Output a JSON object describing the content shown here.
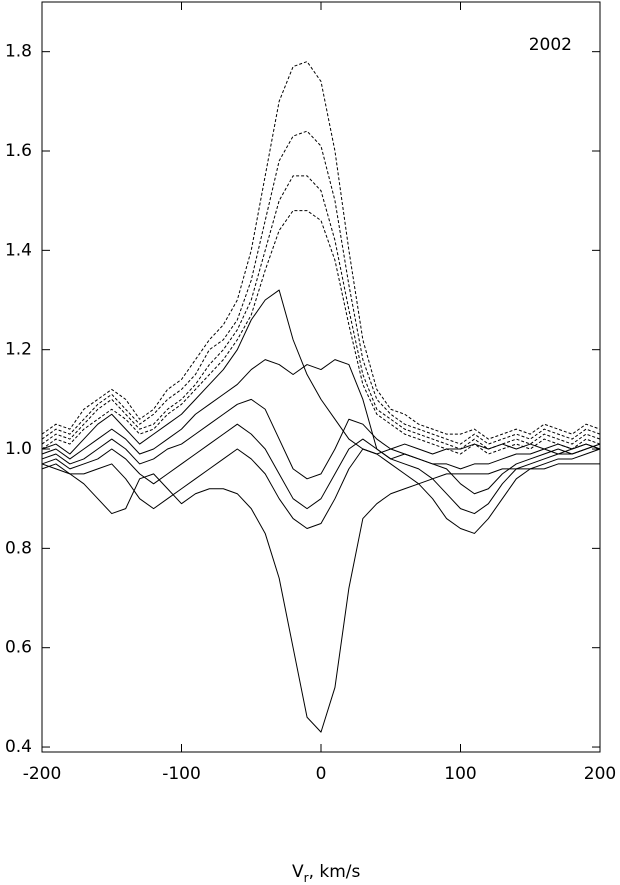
{
  "chart_data": {
    "type": "line",
    "annotation": "2002",
    "x_label": [
      "V",
      "r",
      ", km/s"
    ],
    "xlim": [
      -200,
      200
    ],
    "ylim": [
      0.39,
      1.9
    ],
    "xticks": [
      -200,
      -100,
      0,
      100,
      200
    ],
    "yticks": [
      0.4,
      0.6,
      0.8,
      {
        "value": 1,
        "label": "1.0"
      },
      1.2,
      1.4,
      1.6,
      1.8
    ],
    "x": [
      -200,
      -190,
      -180,
      -170,
      -160,
      -150,
      -140,
      -130,
      -120,
      -110,
      -100,
      -90,
      -80,
      -70,
      -60,
      -50,
      -40,
      -30,
      -20,
      -10,
      0,
      10,
      20,
      30,
      40,
      50,
      60,
      70,
      80,
      90,
      100,
      110,
      120,
      130,
      140,
      150,
      160,
      170,
      180,
      190,
      200
    ],
    "series": [
      {
        "color": "#000",
        "dashed": true,
        "values": [
          1.03,
          1.05,
          1.04,
          1.08,
          1.1,
          1.12,
          1.1,
          1.06,
          1.08,
          1.12,
          1.14,
          1.18,
          1.22,
          1.25,
          1.3,
          1.4,
          1.55,
          1.7,
          1.77,
          1.78,
          1.74,
          1.6,
          1.4,
          1.22,
          1.12,
          1.08,
          1.07,
          1.05,
          1.04,
          1.03,
          1.03,
          1.04,
          1.02,
          1.03,
          1.04,
          1.03,
          1.05,
          1.04,
          1.03,
          1.05,
          1.04
        ]
      },
      {
        "color": "#000",
        "dashed": true,
        "values": [
          1.02,
          1.04,
          1.03,
          1.06,
          1.09,
          1.11,
          1.08,
          1.05,
          1.07,
          1.1,
          1.12,
          1.15,
          1.2,
          1.22,
          1.26,
          1.34,
          1.46,
          1.58,
          1.63,
          1.64,
          1.61,
          1.5,
          1.33,
          1.18,
          1.1,
          1.07,
          1.05,
          1.04,
          1.03,
          1.02,
          1.01,
          1.03,
          1.01,
          1.02,
          1.03,
          1.02,
          1.04,
          1.03,
          1.02,
          1.04,
          1.03
        ]
      },
      {
        "color": "#000",
        "dashed": true,
        "values": [
          1.01,
          1.03,
          1.02,
          1.05,
          1.08,
          1.1,
          1.07,
          1.04,
          1.05,
          1.08,
          1.1,
          1.13,
          1.17,
          1.2,
          1.24,
          1.3,
          1.4,
          1.5,
          1.55,
          1.55,
          1.52,
          1.42,
          1.28,
          1.15,
          1.08,
          1.06,
          1.04,
          1.03,
          1.02,
          1.01,
          1.0,
          1.02,
          1.0,
          1.01,
          1.02,
          1.01,
          1.03,
          1.02,
          1.01,
          1.03,
          1.02
        ]
      },
      {
        "color": "#000",
        "dashed": true,
        "values": [
          1.0,
          1.02,
          1.01,
          1.04,
          1.06,
          1.08,
          1.06,
          1.03,
          1.04,
          1.07,
          1.09,
          1.12,
          1.15,
          1.18,
          1.22,
          1.27,
          1.36,
          1.44,
          1.48,
          1.48,
          1.46,
          1.38,
          1.25,
          1.13,
          1.07,
          1.05,
          1.03,
          1.02,
          1.01,
          1.0,
          0.99,
          1.01,
          0.99,
          1.0,
          1.01,
          1.0,
          1.02,
          1.01,
          1.0,
          1.02,
          1.01
        ]
      },
      {
        "color": "#000",
        "dashed": false,
        "values": [
          1.0,
          1.01,
          0.99,
          1.02,
          1.05,
          1.07,
          1.04,
          1.01,
          1.03,
          1.05,
          1.07,
          1.1,
          1.13,
          1.16,
          1.2,
          1.26,
          1.3,
          1.32,
          1.22,
          1.15,
          1.1,
          1.06,
          1.02,
          1.0,
          0.99,
          1.0,
          1.01,
          1.0,
          0.99,
          1.0,
          1.0,
          1.01,
          1.0,
          1.01,
          1.0,
          1.01,
          1.0,
          1.01,
          1.0,
          1.01,
          1.0
        ]
      },
      {
        "color": "#000",
        "dashed": false,
        "values": [
          0.99,
          1.0,
          0.98,
          1.0,
          1.02,
          1.04,
          1.02,
          0.99,
          1.0,
          1.02,
          1.04,
          1.07,
          1.09,
          1.11,
          1.13,
          1.16,
          1.18,
          1.17,
          1.15,
          1.17,
          1.16,
          1.18,
          1.17,
          1.1,
          1.0,
          0.98,
          0.99,
          0.98,
          0.97,
          0.97,
          0.96,
          0.97,
          0.97,
          0.98,
          0.99,
          0.99,
          1.0,
          0.99,
          1.0,
          1.01,
          1.0
        ]
      },
      {
        "color": "#000",
        "dashed": false,
        "values": [
          0.98,
          0.99,
          0.97,
          0.98,
          1.0,
          1.02,
          1.0,
          0.97,
          0.98,
          1.0,
          1.01,
          1.03,
          1.05,
          1.07,
          1.09,
          1.1,
          1.08,
          1.02,
          0.96,
          0.94,
          0.95,
          1.0,
          1.06,
          1.05,
          1.02,
          1.0,
          0.99,
          0.98,
          0.97,
          0.96,
          0.93,
          0.91,
          0.92,
          0.95,
          0.97,
          0.98,
          0.99,
          1.0,
          0.99,
          1.0,
          1.01
        ]
      },
      {
        "color": "#000",
        "dashed": false,
        "values": [
          0.96,
          0.97,
          0.95,
          0.95,
          0.96,
          0.97,
          0.94,
          0.9,
          0.88,
          0.9,
          0.92,
          0.94,
          0.96,
          0.98,
          1.0,
          0.98,
          0.95,
          0.9,
          0.86,
          0.84,
          0.85,
          0.9,
          0.96,
          1.0,
          0.99,
          0.97,
          0.95,
          0.93,
          0.9,
          0.86,
          0.84,
          0.83,
          0.86,
          0.9,
          0.94,
          0.96,
          0.97,
          0.98,
          0.98,
          0.99,
          1.0
        ]
      },
      {
        "color": "#000",
        "dashed": false,
        "values": [
          0.97,
          0.98,
          0.96,
          0.97,
          0.98,
          1.0,
          0.98,
          0.95,
          0.93,
          0.95,
          0.97,
          0.99,
          1.01,
          1.03,
          1.05,
          1.03,
          1.0,
          0.95,
          0.9,
          0.88,
          0.9,
          0.95,
          1.0,
          1.02,
          1.0,
          0.98,
          0.97,
          0.96,
          0.94,
          0.91,
          0.88,
          0.87,
          0.89,
          0.93,
          0.96,
          0.97,
          0.98,
          0.99,
          0.99,
          1.0,
          1.01
        ]
      },
      {
        "color": "#000",
        "dashed": false,
        "values": [
          0.97,
          0.96,
          0.95,
          0.93,
          0.9,
          0.87,
          0.88,
          0.94,
          0.95,
          0.92,
          0.89,
          0.91,
          0.92,
          0.92,
          0.91,
          0.88,
          0.83,
          0.74,
          0.6,
          0.46,
          0.43,
          0.52,
          0.72,
          0.86,
          0.89,
          0.91,
          0.92,
          0.93,
          0.94,
          0.95,
          0.95,
          0.95,
          0.95,
          0.96,
          0.96,
          0.96,
          0.96,
          0.97,
          0.97,
          0.97,
          0.97
        ]
      }
    ]
  }
}
